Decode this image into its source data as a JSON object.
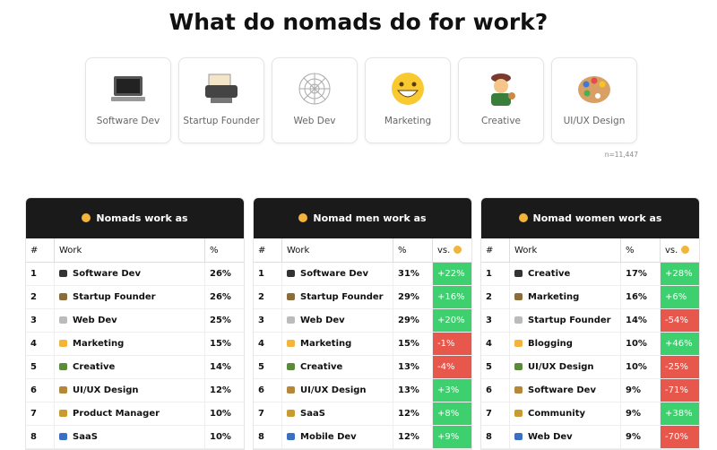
{
  "header": {
    "title": "What do nomads do for work?"
  },
  "cards": [
    "Software Dev",
    "Startup Founder",
    "Web Dev",
    "Marketing",
    "Creative",
    "UI/UX Design"
  ],
  "note": "n=11,447",
  "tables": [
    {
      "title": "Nomads work as",
      "columns": [
        "#",
        "Work",
        "%"
      ],
      "rows": [
        [
          "1",
          "Software Dev",
          "26%"
        ],
        [
          "2",
          "Startup Founder",
          "26%"
        ],
        [
          "3",
          "Web Dev",
          "25%"
        ],
        [
          "4",
          "Marketing",
          "15%"
        ],
        [
          "5",
          "Creative",
          "14%"
        ],
        [
          "6",
          "UI/UX Design",
          "12%"
        ],
        [
          "7",
          "Product Manager",
          "10%"
        ],
        [
          "8",
          "SaaS",
          "10%"
        ]
      ]
    },
    {
      "title": "Nomad men work as",
      "columns": [
        "#",
        "Work",
        "%",
        "vs."
      ],
      "rows": [
        [
          "1",
          "Software Dev",
          "31%",
          "+22%"
        ],
        [
          "2",
          "Startup Founder",
          "29%",
          "+16%"
        ],
        [
          "3",
          "Web Dev",
          "29%",
          "+20%"
        ],
        [
          "4",
          "Marketing",
          "15%",
          "-1%"
        ],
        [
          "5",
          "Creative",
          "13%",
          "-4%"
        ],
        [
          "6",
          "UI/UX Design",
          "13%",
          "+3%"
        ],
        [
          "7",
          "SaaS",
          "12%",
          "+8%"
        ],
        [
          "8",
          "Mobile Dev",
          "12%",
          "+9%"
        ]
      ]
    },
    {
      "title": "Nomad women work as",
      "columns": [
        "#",
        "Work",
        "%",
        "vs."
      ],
      "rows": [
        [
          "1",
          "Creative",
          "17%",
          "+28%"
        ],
        [
          "2",
          "Marketing",
          "16%",
          "+6%"
        ],
        [
          "3",
          "Startup Founder",
          "14%",
          "-54%"
        ],
        [
          "4",
          "Blogging",
          "10%",
          "+46%"
        ],
        [
          "5",
          "UI/UX Design",
          "10%",
          "-25%"
        ],
        [
          "6",
          "Software Dev",
          "9%",
          "-71%"
        ],
        [
          "7",
          "Community",
          "9%",
          "+38%"
        ],
        [
          "8",
          "Web Dev",
          "9%",
          "-70%"
        ]
      ]
    }
  ]
}
